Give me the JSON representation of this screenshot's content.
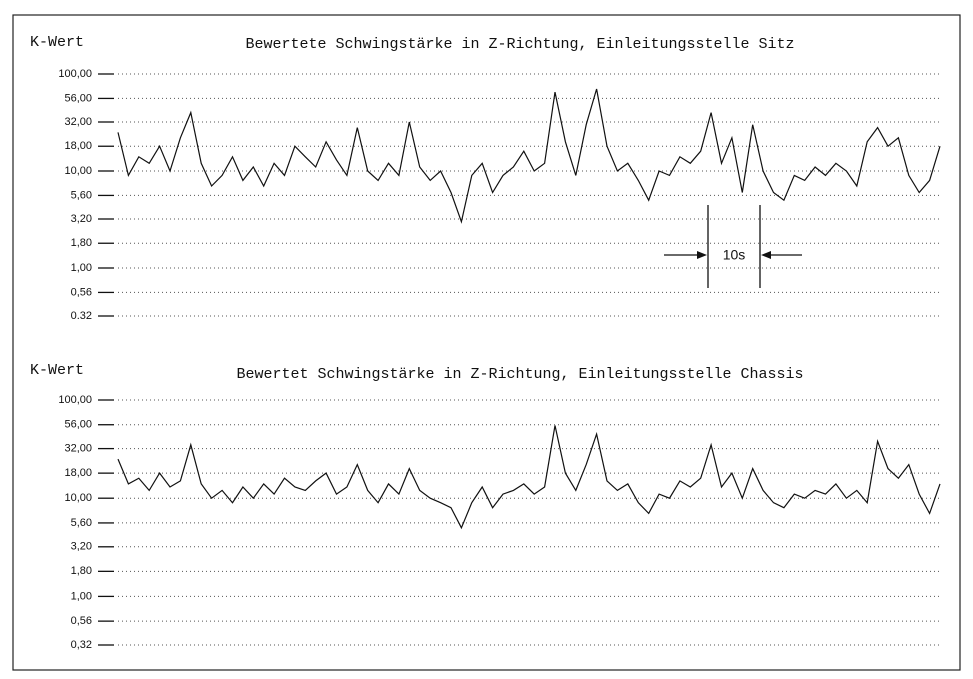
{
  "chart_data": [
    {
      "type": "line",
      "title": "Bewertete  Schwingstärke in Z-Richtung, Einleitungsstelle Sitz",
      "ylabel": "K-Wert",
      "annotation": "10s",
      "yscale": "log",
      "grid": true,
      "color": "#111111",
      "ylim": [
        0.32,
        100
      ],
      "xlim": [
        0,
        158
      ],
      "yticks": [
        {
          "value": 100,
          "label": "100,00"
        },
        {
          "value": 56,
          "label": "56,00"
        },
        {
          "value": 32,
          "label": "32,00"
        },
        {
          "value": 18,
          "label": "18,00"
        },
        {
          "value": 10,
          "label": "10,00"
        },
        {
          "value": 5.6,
          "label": "5,60"
        },
        {
          "value": 3.2,
          "label": "3,20"
        },
        {
          "value": 1.8,
          "label": "1,80"
        },
        {
          "value": 1,
          "label": "1,00"
        },
        {
          "value": 0.56,
          "label": "0,56"
        },
        {
          "value": 0.32,
          "label": "0.32"
        }
      ],
      "x": [
        0,
        2,
        4,
        6,
        8,
        10,
        12,
        14,
        16,
        18,
        20,
        22,
        24,
        26,
        28,
        30,
        32,
        34,
        36,
        38,
        40,
        42,
        44,
        46,
        48,
        50,
        52,
        54,
        56,
        58,
        60,
        62,
        64,
        66,
        68,
        70,
        72,
        74,
        76,
        78,
        80,
        82,
        84,
        86,
        88,
        90,
        92,
        94,
        96,
        98,
        100,
        102,
        104,
        106,
        108,
        110,
        112,
        114,
        116,
        118,
        120,
        122,
        124,
        126,
        128,
        130,
        132,
        134,
        136,
        138,
        140,
        142,
        144,
        146,
        148,
        150,
        152,
        154,
        156,
        158
      ],
      "values": [
        25,
        9,
        14,
        12,
        18,
        10,
        22,
        40,
        12,
        7,
        9,
        14,
        8,
        11,
        7,
        12,
        9,
        18,
        14,
        11,
        20,
        13,
        9,
        28,
        10,
        8,
        12,
        9,
        32,
        11,
        8,
        10,
        6,
        3,
        9,
        12,
        6,
        9,
        11,
        16,
        10,
        12,
        65,
        20,
        9,
        30,
        70,
        18,
        10,
        12,
        8,
        5,
        10,
        9,
        14,
        12,
        16,
        40,
        12,
        22,
        6,
        30,
        10,
        6,
        5,
        9,
        8,
        11,
        9,
        12,
        10,
        7,
        20,
        28,
        18,
        22,
        9,
        6,
        8,
        18
      ]
    },
    {
      "type": "line",
      "title": "Bewertet Schwingstärke in Z-Richtung, Einleitungsstelle Chassis",
      "ylabel": "K-Wert",
      "yscale": "log",
      "grid": true,
      "color": "#111111",
      "ylim": [
        0.32,
        100
      ],
      "xlim": [
        0,
        158
      ],
      "yticks": [
        {
          "value": 100,
          "label": "100,00"
        },
        {
          "value": 56,
          "label": "56,00"
        },
        {
          "value": 32,
          "label": "32,00"
        },
        {
          "value": 18,
          "label": "18,00"
        },
        {
          "value": 10,
          "label": "10,00"
        },
        {
          "value": 5.6,
          "label": "5,60"
        },
        {
          "value": 3.2,
          "label": "3,20"
        },
        {
          "value": 1.8,
          "label": "1,80"
        },
        {
          "value": 1,
          "label": "1,00"
        },
        {
          "value": 0.56,
          "label": "0,56"
        },
        {
          "value": 0.32,
          "label": "0,32"
        }
      ],
      "x": [
        0,
        2,
        4,
        6,
        8,
        10,
        12,
        14,
        16,
        18,
        20,
        22,
        24,
        26,
        28,
        30,
        32,
        34,
        36,
        38,
        40,
        42,
        44,
        46,
        48,
        50,
        52,
        54,
        56,
        58,
        60,
        62,
        64,
        66,
        68,
        70,
        72,
        74,
        76,
        78,
        80,
        82,
        84,
        86,
        88,
        90,
        92,
        94,
        96,
        98,
        100,
        102,
        104,
        106,
        108,
        110,
        112,
        114,
        116,
        118,
        120,
        122,
        124,
        126,
        128,
        130,
        132,
        134,
        136,
        138,
        140,
        142,
        144,
        146,
        148,
        150,
        152,
        154,
        156,
        158
      ],
      "values": [
        25,
        14,
        16,
        12,
        18,
        13,
        15,
        35,
        14,
        10,
        12,
        9,
        13,
        10,
        14,
        11,
        16,
        13,
        12,
        15,
        18,
        11,
        13,
        22,
        12,
        9,
        14,
        11,
        20,
        12,
        10,
        9,
        8,
        5,
        9,
        13,
        8,
        11,
        12,
        14,
        11,
        13,
        55,
        18,
        12,
        22,
        45,
        15,
        12,
        14,
        9,
        7,
        11,
        10,
        15,
        13,
        16,
        35,
        13,
        18,
        10,
        20,
        12,
        9,
        8,
        11,
        10,
        12,
        11,
        14,
        10,
        12,
        9,
        38,
        20,
        16,
        22,
        11,
        7,
        14
      ]
    }
  ]
}
